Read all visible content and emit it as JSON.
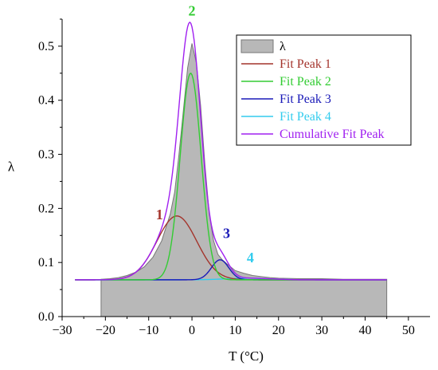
{
  "chart_data": {
    "type": "area",
    "xlabel": "T (°C)",
    "ylabel": "λ",
    "xlim": [
      -30,
      55
    ],
    "ylim": [
      0,
      0.55
    ],
    "x_ticks": [
      -30,
      -20,
      -10,
      0,
      10,
      20,
      30,
      40,
      50
    ],
    "x_tick_labels": [
      "−30",
      "−20",
      "−10",
      "0",
      "10",
      "20",
      "30",
      "40",
      "50"
    ],
    "y_ticks": [
      0,
      0.1,
      0.2,
      0.3,
      0.4,
      0.5
    ],
    "y_tick_labels": [
      "0.0",
      "0.1",
      "0.2",
      "0.3",
      "0.4",
      "0.5"
    ],
    "grid": false,
    "legend_position": "top-right",
    "baseline": 0.068,
    "series": [
      {
        "name": "λ",
        "kind": "area",
        "color": "#b8b8b8",
        "x": [
          -21,
          -19,
          -17,
          -15,
          -13,
          -11,
          -9,
          -7,
          -5,
          -4,
          -3,
          -2,
          -1,
          0,
          1,
          2,
          3,
          4,
          5,
          6,
          7,
          8,
          10,
          12,
          14,
          16,
          18,
          20,
          25,
          30,
          35,
          40,
          45
        ],
        "y": [
          0.069,
          0.07,
          0.072,
          0.076,
          0.082,
          0.092,
          0.11,
          0.14,
          0.19,
          0.23,
          0.3,
          0.38,
          0.46,
          0.505,
          0.47,
          0.39,
          0.28,
          0.19,
          0.14,
          0.115,
          0.105,
          0.098,
          0.085,
          0.08,
          0.076,
          0.074,
          0.072,
          0.071,
          0.07,
          0.07,
          0.069,
          0.069,
          0.069
        ]
      },
      {
        "name": "Fit Peak 1",
        "kind": "gaussian",
        "color": "#a4342c",
        "center": -3.5,
        "amplitude": 0.118,
        "width": 4.6
      },
      {
        "name": "Fit Peak 2",
        "kind": "gaussian",
        "color": "#33cc33",
        "center": -0.3,
        "amplitude": 0.382,
        "width": 2.4
      },
      {
        "name": "Fit Peak 3",
        "kind": "gaussian",
        "color": "#1a1ab8",
        "center": 6.5,
        "amplitude": 0.037,
        "width": 2.0
      },
      {
        "name": "Fit Peak 4",
        "kind": "gaussian",
        "color": "#33ccee",
        "center": 13,
        "amplitude": 0.003,
        "width": 5.0
      },
      {
        "name": "Cumulative Fit Peak",
        "kind": "sum",
        "color": "#a020f0"
      }
    ],
    "annotations": [
      {
        "text": "1",
        "x": -7.5,
        "y": 0.18,
        "color": "#a4342c"
      },
      {
        "text": "2",
        "x": 0,
        "y": 0.557,
        "color": "#33cc33"
      },
      {
        "text": "3",
        "x": 8,
        "y": 0.145,
        "color": "#1a1ab8"
      },
      {
        "text": "4",
        "x": 13.5,
        "y": 0.1,
        "color": "#33ccee"
      }
    ]
  }
}
